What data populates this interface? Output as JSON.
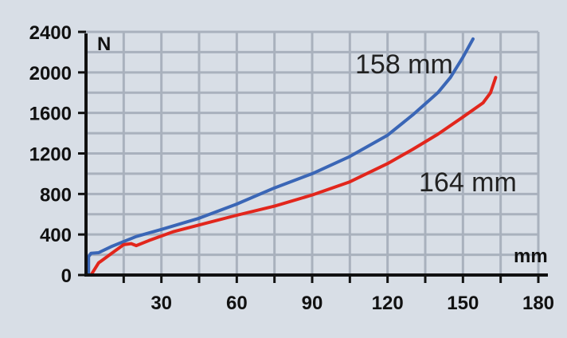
{
  "chart_data": {
    "type": "line",
    "title": "",
    "xlabel": "mm",
    "ylabel": "N",
    "xlim": [
      0,
      180
    ],
    "ylim": [
      0,
      2400
    ],
    "x_ticks": [
      30,
      60,
      90,
      120,
      150,
      180
    ],
    "y_ticks": [
      0,
      400,
      800,
      1200,
      1600,
      2000,
      2400
    ],
    "grid": true,
    "colors": {
      "background": "#d8dee6",
      "grid": "#a9b1bd",
      "axis": "#111111"
    },
    "series": [
      {
        "name": "158 mm",
        "color": "#3a66b6",
        "points": [
          [
            1,
            0
          ],
          [
            1,
            180
          ],
          [
            2,
            215
          ],
          [
            5,
            220
          ],
          [
            10,
            280
          ],
          [
            20,
            380
          ],
          [
            30,
            450
          ],
          [
            45,
            560
          ],
          [
            60,
            700
          ],
          [
            75,
            860
          ],
          [
            90,
            1000
          ],
          [
            105,
            1170
          ],
          [
            120,
            1380
          ],
          [
            130,
            1580
          ],
          [
            140,
            1800
          ],
          [
            145,
            1950
          ],
          [
            150,
            2150
          ],
          [
            154,
            2330
          ]
        ]
      },
      {
        "name": "164 mm",
        "color": "#e2261c",
        "points": [
          [
            2,
            0
          ],
          [
            5,
            120
          ],
          [
            10,
            210
          ],
          [
            15,
            300
          ],
          [
            18,
            310
          ],
          [
            20,
            290
          ],
          [
            25,
            340
          ],
          [
            35,
            430
          ],
          [
            60,
            590
          ],
          [
            75,
            680
          ],
          [
            90,
            790
          ],
          [
            105,
            920
          ],
          [
            120,
            1100
          ],
          [
            130,
            1240
          ],
          [
            140,
            1390
          ],
          [
            150,
            1560
          ],
          [
            158,
            1700
          ],
          [
            161,
            1800
          ],
          [
            163,
            1950
          ]
        ]
      }
    ]
  }
}
